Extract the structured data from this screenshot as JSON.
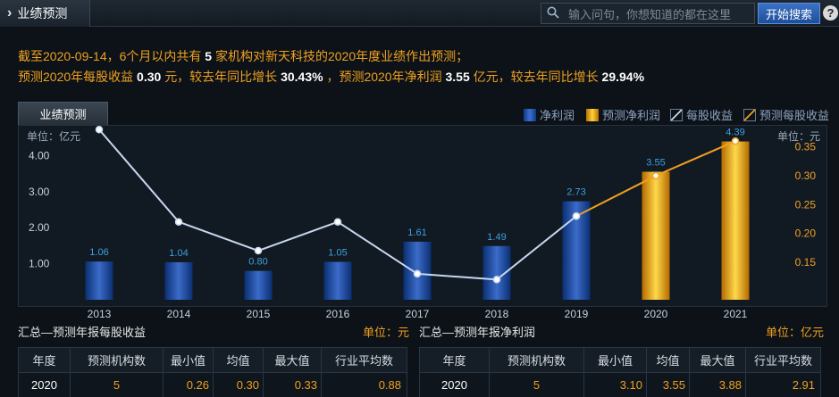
{
  "header": {
    "title": "业绩预测",
    "search_placeholder": "输入问句，你想知道的都在这里",
    "search_button": "开始搜索",
    "help_label": "?"
  },
  "summary": {
    "line1_prefix": "截至2020-09-14，6个月以内共有",
    "org_count": "5",
    "line1_suffix": "家机构对新天科技的2020年度业绩作出预测；",
    "line2_a": "预测2020年每股收益",
    "eps": "0.30",
    "line2_b": "元，较去年同比增长",
    "eps_growth": "30.43%",
    "line2_c": "，预测2020年净利润",
    "profit": "3.55",
    "line2_d": "亿元，较去年同比增长",
    "profit_growth": "29.94%"
  },
  "chart_tab": "业绩预测",
  "legend": {
    "net_profit": "净利润",
    "forecast_profit": "预测净利润",
    "eps": "每股收益",
    "forecast_eps": "预测每股收益"
  },
  "colors": {
    "accent": "#f0a020",
    "bar": "#1e4fa8",
    "forecast_bar": "#f2b418",
    "eps_line": "#c8d8f0",
    "forecast_line": "#f0a020"
  },
  "chart_data": {
    "type": "bar",
    "categories": [
      "2013",
      "2014",
      "2015",
      "2016",
      "2017",
      "2018",
      "2019",
      "2020",
      "2021"
    ],
    "series": [
      {
        "name": "净利润",
        "values": [
          1.06,
          1.04,
          0.8,
          1.05,
          1.61,
          1.49,
          2.73,
          null,
          null
        ],
        "labels": [
          "1.06",
          "1.04",
          "0.80",
          "1.05",
          "1.61",
          "1.49",
          "2.73",
          "",
          ""
        ]
      },
      {
        "name": "预测净利润",
        "values": [
          null,
          null,
          null,
          null,
          null,
          null,
          null,
          3.55,
          4.39
        ],
        "labels": [
          "",
          "",
          "",
          "",
          "",
          "",
          "",
          "3.55",
          "4.39"
        ]
      },
      {
        "name": "每股收益",
        "axis": "right",
        "values": [
          0.38,
          0.22,
          0.17,
          0.22,
          0.13,
          0.12,
          0.23,
          null,
          null
        ]
      },
      {
        "name": "预测每股收益",
        "axis": "right",
        "values": [
          null,
          null,
          null,
          null,
          null,
          null,
          0.23,
          0.3,
          0.36
        ]
      }
    ],
    "left_axis": {
      "unit_label": "单位：亿元",
      "ticks": [
        "1.00",
        "2.00",
        "3.00",
        "4.00"
      ],
      "ylim": [
        0,
        4.8
      ]
    },
    "right_axis": {
      "unit_label": "单位：元",
      "ticks": [
        "0.15",
        "0.20",
        "0.25",
        "0.30",
        "0.35"
      ],
      "ylim": [
        0.085,
        0.385
      ]
    }
  },
  "eps_table": {
    "title": "汇总—预测年报每股收益",
    "unit": "单位：元",
    "headers": [
      "年度",
      "预测机构数",
      "最小值",
      "均值",
      "最大值",
      "行业平均数"
    ],
    "rows": [
      [
        "2020",
        "5",
        "0.26",
        "0.30",
        "0.33",
        "0.88"
      ]
    ]
  },
  "profit_table": {
    "title": "汇总—预测年报净利润",
    "unit": "单位：亿元",
    "headers": [
      "年度",
      "预测机构数",
      "最小值",
      "均值",
      "最大值",
      "行业平均数"
    ],
    "rows": [
      [
        "2020",
        "5",
        "3.10",
        "3.55",
        "3.88",
        "2.91"
      ]
    ]
  }
}
